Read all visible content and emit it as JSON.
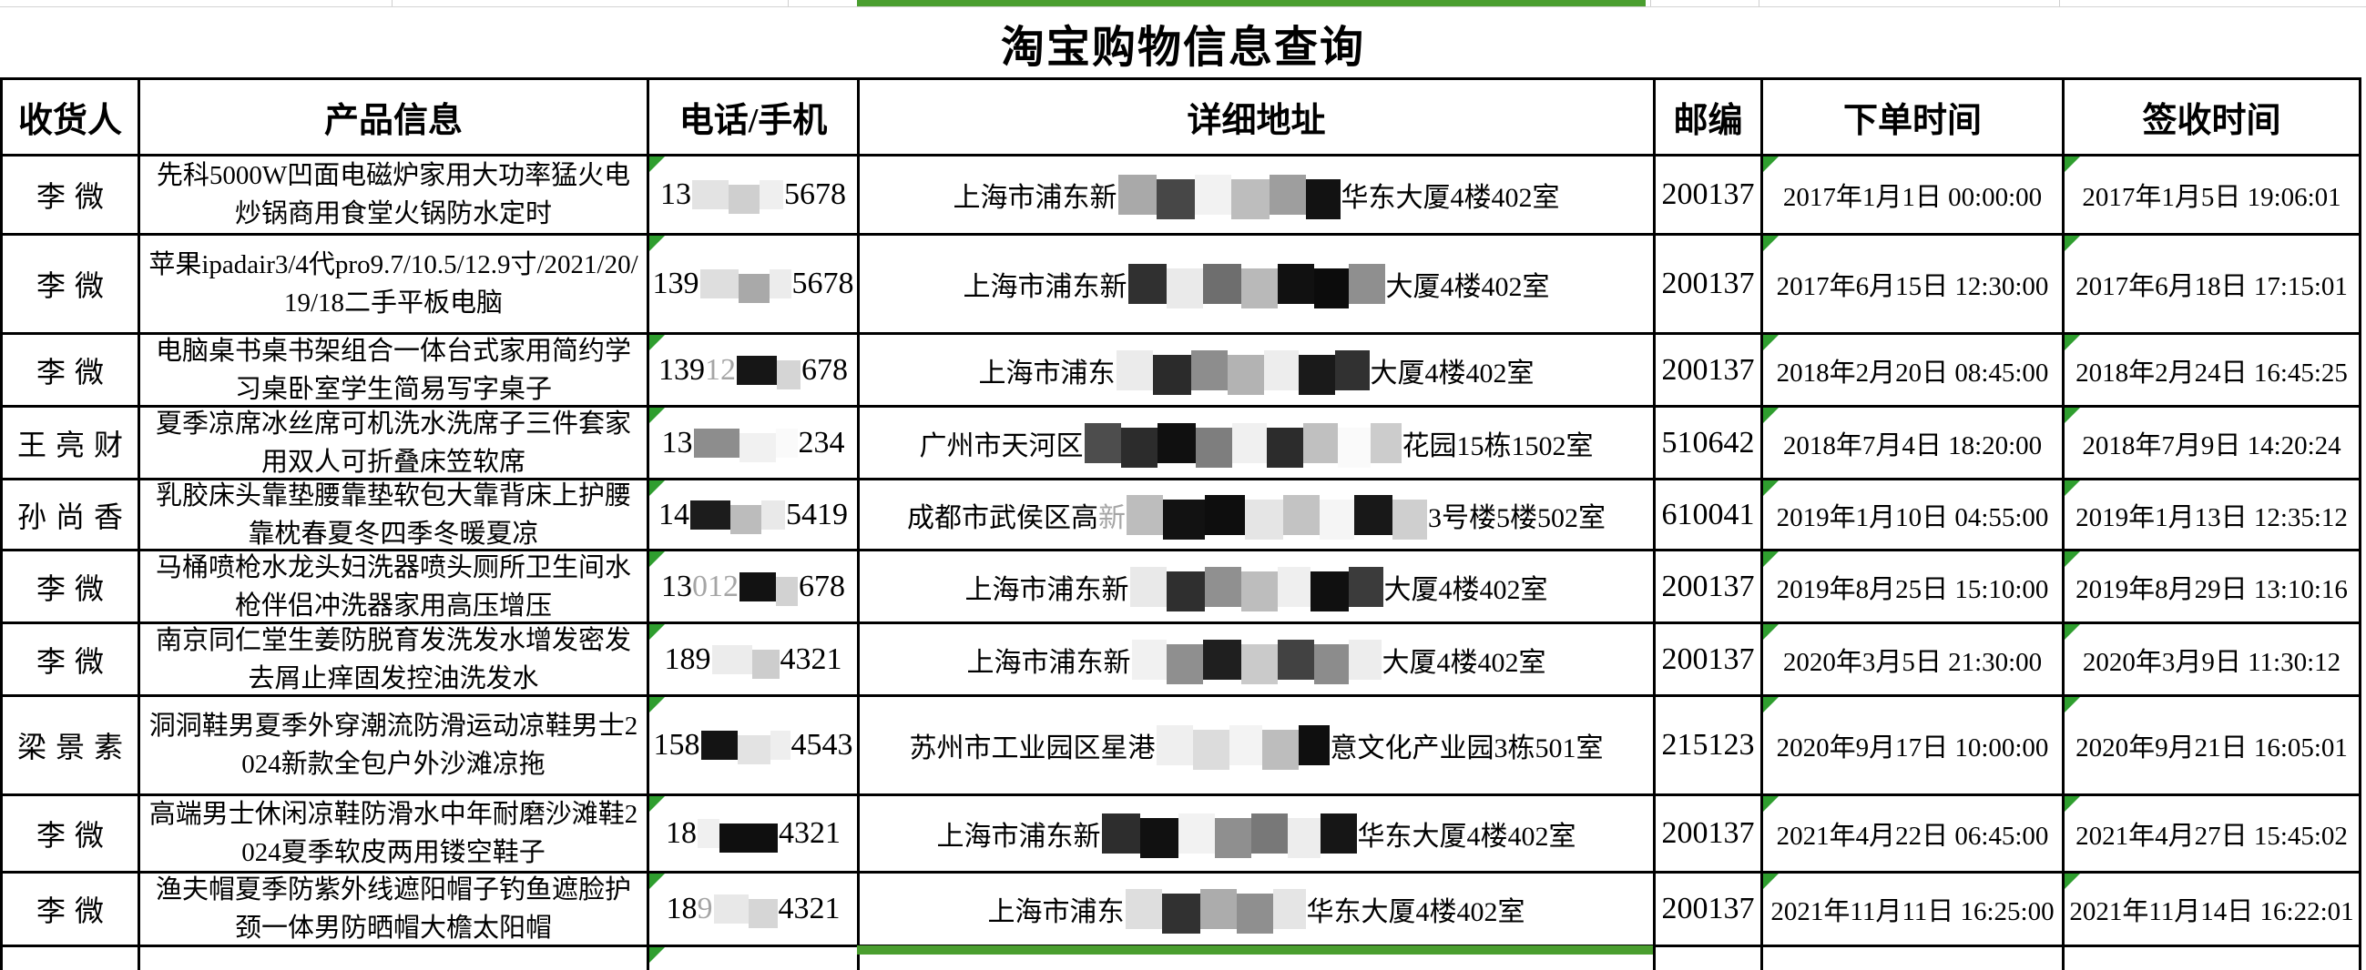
{
  "title": "淘宝购物信息查询",
  "colors": {
    "accent_green_bar": "#4a9e2f",
    "error_indicator_green": "#2f9e2f",
    "table_border": "#000000",
    "gridline_gray": "#cfcfcf"
  },
  "columns": [
    {
      "label": "收货人"
    },
    {
      "label": "产品信息"
    },
    {
      "label": "电话/手机"
    },
    {
      "label": "详细地址"
    },
    {
      "label": "邮编"
    },
    {
      "label": "下单时间"
    },
    {
      "label": "签收时间"
    }
  ],
  "rows": [
    {
      "h": 87,
      "recipient": "李微",
      "product": "先科5000W凹面电磁炉家用大功率猛火电炒锅商用食堂火锅防水定时",
      "phone": {
        "segments": [
          {
            "text": "13"
          },
          {
            "blocks": [
              [
                "#e3e3e3",
                40
              ],
              [
                "#cfcfcf",
                34
              ],
              [
                "#efefef",
                26
              ]
            ]
          },
          {
            "text": "5678"
          }
        ]
      },
      "address": {
        "segments": [
          {
            "text": "上海市浦东新"
          },
          {
            "blocks": [
              [
                "#a9a9a9",
                42
              ],
              [
                "#474747",
                42
              ],
              [
                "#f2f2f2",
                40
              ],
              [
                "#bdbdbd",
                42
              ],
              [
                "#9e9e9e",
                40
              ],
              [
                "#121212",
                38
              ]
            ]
          },
          {
            "text": "华东大厦4楼402室"
          }
        ]
      },
      "postal": "200137",
      "order_time": "2017年1月1日 00:00:00",
      "sign_time": "2017年1月5日 19:06:01"
    },
    {
      "h": 109,
      "recipient": "李微",
      "product": "苹果ipadair3/4代pro9.7/10.5/12.9寸/2021/20/19/18二手平板电脑",
      "phone": {
        "segments": [
          {
            "text": "139"
          },
          {
            "blocks": [
              [
                "#dedede",
                42
              ],
              [
                "#a9a9a9",
                34
              ],
              [
                "#ececec",
                24
              ]
            ]
          },
          {
            "text": "5678"
          }
        ]
      },
      "address": {
        "segments": [
          {
            "text": "上海市浦东新"
          },
          {
            "blocks": [
              [
                "#303030",
                42
              ],
              [
                "#eaeaea",
                40
              ],
              [
                "#6e6e6e",
                42
              ],
              [
                "#b9b9b9",
                40
              ],
              [
                "#111111",
                40
              ],
              [
                "#0c0c0c",
                38
              ],
              [
                "#8f8f8f",
                40
              ]
            ]
          },
          {
            "text": "大厦4楼402室"
          }
        ]
      },
      "postal": "200137",
      "order_time": "2017年6月15日 12:30:00",
      "sign_time": "2017年6月18日 17:15:01"
    },
    {
      "h": 80,
      "recipient": "李微",
      "product": "电脑桌书桌书架组合一体台式家用简约学习桌卧室学生简易写字桌子",
      "phone": {
        "segments": [
          {
            "text": "139"
          },
          {
            "text": "12",
            "faint": true
          },
          {
            "blocks": [
              [
                "#161616",
                44
              ],
              [
                "#d5d5d5",
                26
              ]
            ]
          },
          {
            "text": "678"
          }
        ]
      },
      "address": {
        "segments": [
          {
            "text": "上海市浦东"
          },
          {
            "blocks": [
              [
                "#ebebeb",
                40
              ],
              [
                "#2b2b2b",
                42
              ],
              [
                "#8d8d8d",
                40
              ],
              [
                "#b3b3b3",
                40
              ],
              [
                "#ededed",
                38
              ],
              [
                "#1a1a1a",
                40
              ],
              [
                "#313131",
                38
              ]
            ]
          },
          {
            "text": "大厦4楼402室"
          }
        ]
      },
      "postal": "200137",
      "order_time": "2018年2月20日 08:45:00",
      "sign_time": "2018年2月24日 16:45:25"
    },
    {
      "h": 80,
      "recipient": "王亮财",
      "product": "夏季凉席冰丝席可机洗水洗席子三件套家用双人可折叠床笠软席",
      "phone": {
        "segments": [
          {
            "text": "13"
          },
          {
            "blocks": [
              [
                "#8d8d8d",
                50
              ],
              [
                "#f1f1f1",
                40
              ],
              [
                "#fafafa",
                24
              ]
            ]
          },
          {
            "text": "234"
          }
        ]
      },
      "address": {
        "segments": [
          {
            "text": "广州市天河区"
          },
          {
            "blocks": [
              [
                "#4d4d4d",
                40
              ],
              [
                "#2c2c2c",
                40
              ],
              [
                "#101010",
                42
              ],
              [
                "#7e7e7e",
                40
              ],
              [
                "#f0f0f0",
                38
              ],
              [
                "#2c2c2c",
                40
              ],
              [
                "#c0c0c0",
                38
              ],
              [
                "#fafafa",
                36
              ],
              [
                "#cccccc",
                34
              ]
            ]
          },
          {
            "text": "花园15栋1502室"
          }
        ]
      },
      "postal": "510642",
      "order_time": "2018年7月4日 18:20:00",
      "sign_time": "2018年7月9日 14:20:24"
    },
    {
      "h": 78,
      "recipient": "孙尚香",
      "product": "乳胶床头靠垫腰靠垫软包大靠背床上护腰靠枕春夏冬四季冬暖夏凉",
      "phone": {
        "segments": [
          {
            "text": "14"
          },
          {
            "blocks": [
              [
                "#1c1c1c",
                44
              ],
              [
                "#bcbcbc",
                34
              ],
              [
                "#e9e9e9",
                26
              ]
            ]
          },
          {
            "text": "5419"
          }
        ]
      },
      "address": {
        "segments": [
          {
            "text": "成都市武侯区高"
          },
          {
            "text": "新",
            "faint": true
          },
          {
            "blocks": [
              [
                "#bdbdbd",
                40
              ],
              [
                "#121212",
                46
              ],
              [
                "#0e0e0e",
                44
              ],
              [
                "#e5e5e5",
                42
              ],
              [
                "#c3c3c3",
                40
              ],
              [
                "#f5f5f5",
                38
              ],
              [
                "#181818",
                42
              ],
              [
                "#cfcfcf",
                38
              ]
            ]
          },
          {
            "text": "3号楼5楼502室"
          }
        ]
      },
      "postal": "610041",
      "order_time": "2019年1月10日 04:55:00",
      "sign_time": "2019年1月13日 12:35:12"
    },
    {
      "h": 80,
      "recipient": "李微",
      "product": "马桶喷枪水龙头妇洗器喷头厕所卫生间水枪伴侣冲洗器家用高压增压",
      "phone": {
        "segments": [
          {
            "text": "13"
          },
          {
            "text": "012",
            "faint": true
          },
          {
            "blocks": [
              [
                "#121212",
                40
              ],
              [
                "#d2d2d2",
                24
              ]
            ]
          },
          {
            "text": "678"
          }
        ]
      },
      "address": {
        "segments": [
          {
            "text": "上海市浦东新"
          },
          {
            "blocks": [
              [
                "#e9e9e9",
                40
              ],
              [
                "#2f2f2f",
                42
              ],
              [
                "#909090",
                40
              ],
              [
                "#bdbdbd",
                40
              ],
              [
                "#efefef",
                36
              ],
              [
                "#101010",
                42
              ],
              [
                "#3b3b3b",
                38
              ]
            ]
          },
          {
            "text": "大厦4楼402室"
          }
        ]
      },
      "postal": "200137",
      "order_time": "2019年8月25日 15:10:00",
      "sign_time": "2019年8月29日 13:10:16"
    },
    {
      "h": 80,
      "recipient": "李微",
      "product": "南京同仁堂生姜防脱育发洗发水增发密发去屑止痒固发控油洗发水",
      "phone": {
        "segments": [
          {
            "text": "189"
          },
          {
            "blocks": [
              [
                "#ececec",
                44
              ],
              [
                "#cdcdcd",
                30
              ]
            ]
          },
          {
            "text": "4321"
          }
        ]
      },
      "address": {
        "segments": [
          {
            "text": "上海市浦东新"
          },
          {
            "blocks": [
              [
                "#f1f1f1",
                38
              ],
              [
                "#8f8f8f",
                40
              ],
              [
                "#1f1f1f",
                42
              ],
              [
                "#cacaca",
                40
              ],
              [
                "#424242",
                40
              ],
              [
                "#8c8c8c",
                38
              ],
              [
                "#ededed",
                36
              ]
            ]
          },
          {
            "text": "大厦4楼402室"
          }
        ]
      },
      "postal": "200137",
      "order_time": "2020年3月5日 21:30:00",
      "sign_time": "2020年3月9日 11:30:12"
    },
    {
      "h": 109,
      "recipient": "梁景素",
      "product": "洞洞鞋男夏季外穿潮流防滑运动凉鞋男士2024新款全包户外沙滩凉拖",
      "phone": {
        "segments": [
          {
            "text": "158"
          },
          {
            "blocks": [
              [
                "#141414",
                40
              ],
              [
                "#e3e3e3",
                36
              ],
              [
                "#eeeeee",
                22
              ]
            ]
          },
          {
            "text": "4543"
          }
        ]
      },
      "address": {
        "segments": [
          {
            "text": "苏州市工业园区星港"
          },
          {
            "blocks": [
              [
                "#efefef",
                40
              ],
              [
                "#dcdcdc",
                40
              ],
              [
                "#f3f3f3",
                36
              ],
              [
                "#bdbdbd",
                40
              ],
              [
                "#0f0f0f",
                34
              ]
            ]
          },
          {
            "text": "意文化产业园3栋501室"
          }
        ]
      },
      "postal": "215123",
      "order_time": "2020年9月17日 10:00:00",
      "sign_time": "2020年9月21日 16:05:01"
    },
    {
      "h": 85,
      "recipient": "李微",
      "product": "高端男士休闲凉鞋防滑水中年耐磨沙滩鞋2024夏季软皮两用镂空鞋子",
      "phone": {
        "segments": [
          {
            "text": "18"
          },
          {
            "blocks": [
              [
                "#f0f0f0",
                24
              ],
              [
                "#0f0f0f",
                64
              ]
            ]
          },
          {
            "text": "4321"
          }
        ]
      },
      "address": {
        "segments": [
          {
            "text": "上海市浦东新"
          },
          {
            "blocks": [
              [
                "#2d2d2d",
                42
              ],
              [
                "#111111",
                42
              ],
              [
                "#f2f2f2",
                40
              ],
              [
                "#8f8f8f",
                40
              ],
              [
                "#787878",
                40
              ],
              [
                "#ededed",
                36
              ],
              [
                "#161616",
                40
              ]
            ]
          },
          {
            "text": "华东大厦4楼402室"
          }
        ]
      },
      "postal": "200137",
      "order_time": "2021年4月22日 06:45:00",
      "sign_time": "2021年4月27日 15:45:02"
    },
    {
      "h": 81,
      "recipient": "李微",
      "product": "渔夫帽夏季防紫外线遮阳帽子钓鱼遮脸护颈一体男防晒帽大檐太阳帽",
      "phone": {
        "segments": [
          {
            "text": "18"
          },
          {
            "text": "9",
            "faint": true
          },
          {
            "blocks": [
              [
                "#e8e8e8",
                38
              ],
              [
                "#d6d6d6",
                32
              ]
            ]
          },
          {
            "text": "4321"
          }
        ]
      },
      "address": {
        "segments": [
          {
            "text": "上海市浦东"
          },
          {
            "blocks": [
              [
                "#dedede",
                40
              ],
              [
                "#313131",
                42
              ],
              [
                "#acacac",
                40
              ],
              [
                "#8f8f8f",
                40
              ],
              [
                "#e5e5e5",
                36
              ]
            ]
          },
          {
            "text": "华东大厦4楼402室"
          }
        ]
      },
      "postal": "200137",
      "order_time": "2021年11月11日 16:25:00",
      "sign_time": "2021年11月14日 16:22:01"
    }
  ]
}
